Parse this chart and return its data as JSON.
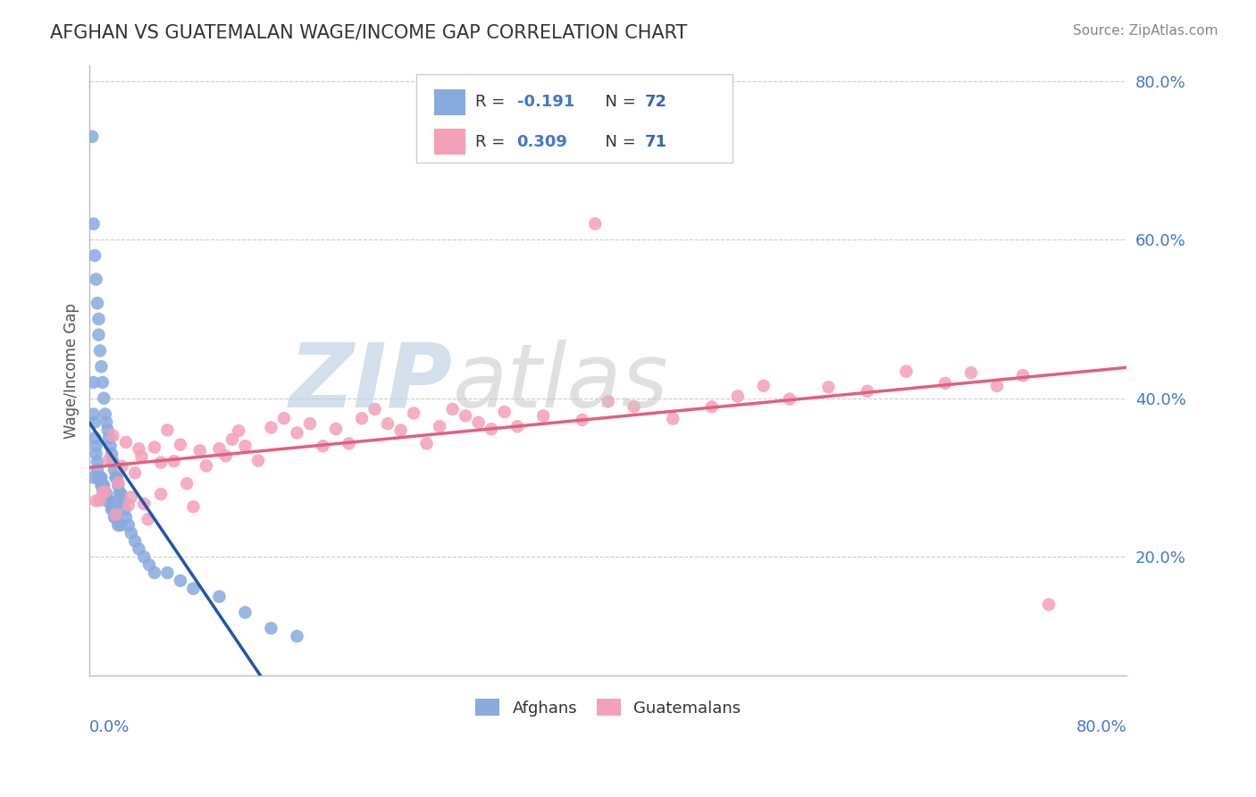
{
  "title": "AFGHAN VS GUATEMALAN WAGE/INCOME GAP CORRELATION CHART",
  "source": "Source: ZipAtlas.com",
  "ylabel": "Wage/Income Gap",
  "afghan_color": "#88AADD",
  "guatemalan_color": "#F4A0B8",
  "afghan_line_color": "#2255AA",
  "guatemalan_line_color": "#E06080",
  "xmin": 0.0,
  "xmax": 0.8,
  "ymin": 0.05,
  "ymax": 0.82,
  "right_yticks": [
    0.2,
    0.4,
    0.6,
    0.8
  ],
  "right_yticklabels": [
    "20.0%",
    "40.0%",
    "60.0%",
    "80.0%"
  ],
  "grid_color": "#CCCCCC",
  "watermark_zip_color": "#B8CCE0",
  "watermark_atlas_color": "#C8C8C8",
  "legend_R_color": "#4477CC",
  "legend_N_color": "#3366BB"
}
